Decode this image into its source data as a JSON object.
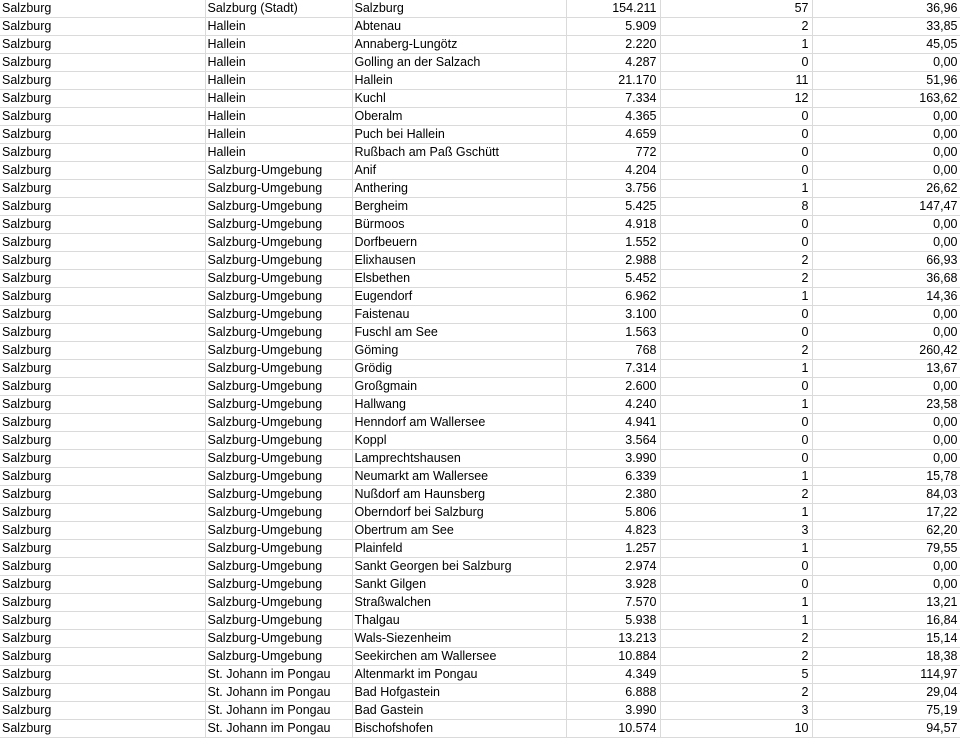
{
  "sheet": {
    "rows": [
      [
        "Salzburg",
        "Salzburg (Stadt)",
        "Salzburg",
        "154.211",
        "57",
        "36,96"
      ],
      [
        "Salzburg",
        "Hallein",
        "Abtenau",
        "5.909",
        "2",
        "33,85"
      ],
      [
        "Salzburg",
        "Hallein",
        "Annaberg-Lungötz",
        "2.220",
        "1",
        "45,05"
      ],
      [
        "Salzburg",
        "Hallein",
        "Golling an der Salzach",
        "4.287",
        "0",
        "0,00"
      ],
      [
        "Salzburg",
        "Hallein",
        "Hallein",
        "21.170",
        "11",
        "51,96"
      ],
      [
        "Salzburg",
        "Hallein",
        "Kuchl",
        "7.334",
        "12",
        "163,62"
      ],
      [
        "Salzburg",
        "Hallein",
        "Oberalm",
        "4.365",
        "0",
        "0,00"
      ],
      [
        "Salzburg",
        "Hallein",
        "Puch bei Hallein",
        "4.659",
        "0",
        "0,00"
      ],
      [
        "Salzburg",
        "Hallein",
        "Rußbach am Paß Gschütt",
        "772",
        "0",
        "0,00"
      ],
      [
        "Salzburg",
        "Salzburg-Umgebung",
        "Anif",
        "4.204",
        "0",
        "0,00"
      ],
      [
        "Salzburg",
        "Salzburg-Umgebung",
        "Anthering",
        "3.756",
        "1",
        "26,62"
      ],
      [
        "Salzburg",
        "Salzburg-Umgebung",
        "Bergheim",
        "5.425",
        "8",
        "147,47"
      ],
      [
        "Salzburg",
        "Salzburg-Umgebung",
        "Bürmoos",
        "4.918",
        "0",
        "0,00"
      ],
      [
        "Salzburg",
        "Salzburg-Umgebung",
        "Dorfbeuern",
        "1.552",
        "0",
        "0,00"
      ],
      [
        "Salzburg",
        "Salzburg-Umgebung",
        "Elixhausen",
        "2.988",
        "2",
        "66,93"
      ],
      [
        "Salzburg",
        "Salzburg-Umgebung",
        "Elsbethen",
        "5.452",
        "2",
        "36,68"
      ],
      [
        "Salzburg",
        "Salzburg-Umgebung",
        "Eugendorf",
        "6.962",
        "1",
        "14,36"
      ],
      [
        "Salzburg",
        "Salzburg-Umgebung",
        "Faistenau",
        "3.100",
        "0",
        "0,00"
      ],
      [
        "Salzburg",
        "Salzburg-Umgebung",
        "Fuschl am See",
        "1.563",
        "0",
        "0,00"
      ],
      [
        "Salzburg",
        "Salzburg-Umgebung",
        "Göming",
        "768",
        "2",
        "260,42"
      ],
      [
        "Salzburg",
        "Salzburg-Umgebung",
        "Grödig",
        "7.314",
        "1",
        "13,67"
      ],
      [
        "Salzburg",
        "Salzburg-Umgebung",
        "Großgmain",
        "2.600",
        "0",
        "0,00"
      ],
      [
        "Salzburg",
        "Salzburg-Umgebung",
        "Hallwang",
        "4.240",
        "1",
        "23,58"
      ],
      [
        "Salzburg",
        "Salzburg-Umgebung",
        "Henndorf am Wallersee",
        "4.941",
        "0",
        "0,00"
      ],
      [
        "Salzburg",
        "Salzburg-Umgebung",
        "Koppl",
        "3.564",
        "0",
        "0,00"
      ],
      [
        "Salzburg",
        "Salzburg-Umgebung",
        "Lamprechtshausen",
        "3.990",
        "0",
        "0,00"
      ],
      [
        "Salzburg",
        "Salzburg-Umgebung",
        "Neumarkt am Wallersee",
        "6.339",
        "1",
        "15,78"
      ],
      [
        "Salzburg",
        "Salzburg-Umgebung",
        "Nußdorf am Haunsberg",
        "2.380",
        "2",
        "84,03"
      ],
      [
        "Salzburg",
        "Salzburg-Umgebung",
        "Oberndorf bei Salzburg",
        "5.806",
        "1",
        "17,22"
      ],
      [
        "Salzburg",
        "Salzburg-Umgebung",
        "Obertrum am See",
        "4.823",
        "3",
        "62,20"
      ],
      [
        "Salzburg",
        "Salzburg-Umgebung",
        "Plainfeld",
        "1.257",
        "1",
        "79,55"
      ],
      [
        "Salzburg",
        "Salzburg-Umgebung",
        "Sankt Georgen bei Salzburg",
        "2.974",
        "0",
        "0,00"
      ],
      [
        "Salzburg",
        "Salzburg-Umgebung",
        "Sankt Gilgen",
        "3.928",
        "0",
        "0,00"
      ],
      [
        "Salzburg",
        "Salzburg-Umgebung",
        "Straßwalchen",
        "7.570",
        "1",
        "13,21"
      ],
      [
        "Salzburg",
        "Salzburg-Umgebung",
        "Thalgau",
        "5.938",
        "1",
        "16,84"
      ],
      [
        "Salzburg",
        "Salzburg-Umgebung",
        "Wals-Siezenheim",
        "13.213",
        "2",
        "15,14"
      ],
      [
        "Salzburg",
        "Salzburg-Umgebung",
        "Seekirchen am Wallersee",
        "10.884",
        "2",
        "18,38"
      ],
      [
        "Salzburg",
        "St. Johann im Pongau",
        "Altenmarkt im Pongau",
        "4.349",
        "5",
        "114,97"
      ],
      [
        "Salzburg",
        "St. Johann im Pongau",
        "Bad Hofgastein",
        "6.888",
        "2",
        "29,04"
      ],
      [
        "Salzburg",
        "St. Johann im Pongau",
        "Bad Gastein",
        "3.990",
        "3",
        "75,19"
      ],
      [
        "Salzburg",
        "St. Johann im Pongau",
        "Bischofshofen",
        "10.574",
        "10",
        "94,57"
      ]
    ]
  }
}
